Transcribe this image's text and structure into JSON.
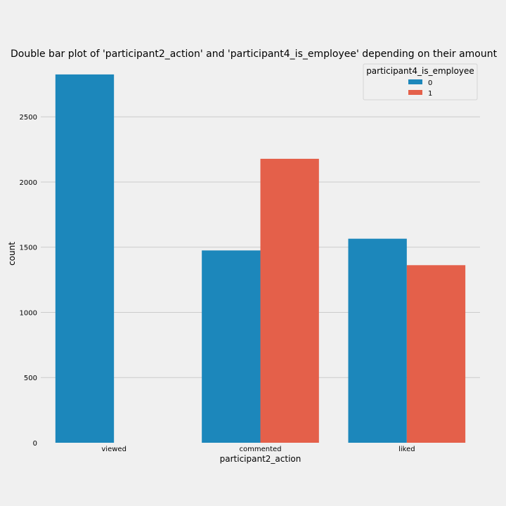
{
  "chart_data": {
    "type": "bar",
    "title": "Double bar plot of 'participant2_action' and 'participant4_is_employee' depending on their amount",
    "xlabel": "participant2_action",
    "ylabel": "count",
    "categories": [
      "viewed",
      "commented",
      "liked"
    ],
    "series": [
      {
        "name": "0",
        "values": [
          2825,
          1475,
          1565
        ],
        "color": "#1c87bb"
      },
      {
        "name": "1",
        "values": [
          0,
          2178,
          1362
        ],
        "color": "#e4604a"
      }
    ],
    "ylim": [
      0,
      2900
    ],
    "yticks": [
      0,
      500,
      1000,
      1500,
      2000,
      2500
    ],
    "grid": "horizontal",
    "legend": {
      "title": "participant4_is_employee",
      "placement": "top-right"
    }
  }
}
